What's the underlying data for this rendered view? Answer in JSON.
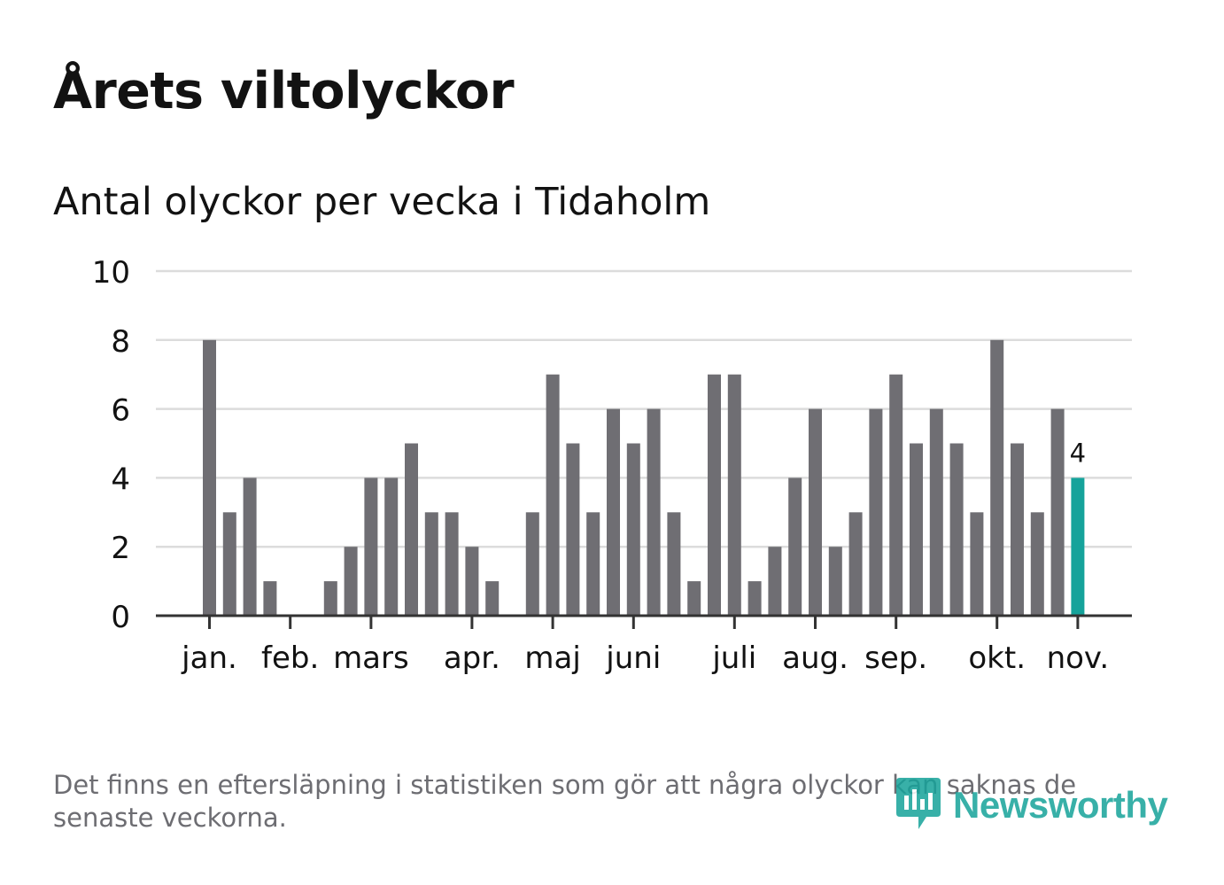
{
  "header": {
    "title": "Årets viltolyckor",
    "subtitle": "Antal olyckor per vecka i Tidaholm"
  },
  "footnote": "Det finns en eftersläpning i statistiken som gör att några olyckor kan saknas de senaste veckorna.",
  "brand": {
    "name": "Newsworthy",
    "icon": "newsworthy-logo-icon"
  },
  "colors": {
    "bar": "#6f6e73",
    "highlight": "#15a39b",
    "grid": "#dcdcdc",
    "axis": "#333333",
    "text": "#121212",
    "muted": "#6d6d72"
  },
  "chart_data": {
    "type": "bar",
    "title": "Antal olyckor per vecka i Tidaholm",
    "xlabel": "",
    "ylabel": "",
    "ylim": [
      0,
      10
    ],
    "yticks": [
      0,
      2,
      4,
      6,
      8,
      10
    ],
    "grid": true,
    "legend": "none",
    "weeks": [
      1,
      2,
      3,
      4,
      5,
      6,
      7,
      8,
      9,
      10,
      11,
      12,
      13,
      14,
      15,
      16,
      17,
      18,
      19,
      20,
      21,
      22,
      23,
      24,
      25,
      26,
      27,
      28,
      29,
      30,
      31,
      32,
      33,
      34,
      35,
      36,
      37,
      38,
      39,
      40,
      41,
      42,
      43,
      44
    ],
    "values": [
      8,
      3,
      4,
      1,
      0,
      0,
      1,
      2,
      4,
      4,
      5,
      3,
      3,
      2,
      1,
      0,
      3,
      7,
      5,
      3,
      6,
      5,
      6,
      3,
      1,
      7,
      7,
      1,
      2,
      4,
      6,
      2,
      3,
      6,
      7,
      5,
      6,
      5,
      3,
      8,
      5,
      3,
      6,
      4
    ],
    "highlight_index": 43,
    "highlight_label": "4",
    "month_ticks": [
      {
        "label": "jan.",
        "week": 1
      },
      {
        "label": "feb.",
        "week": 5
      },
      {
        "label": "mars",
        "week": 9
      },
      {
        "label": "apr.",
        "week": 14
      },
      {
        "label": "maj",
        "week": 18
      },
      {
        "label": "juni",
        "week": 22
      },
      {
        "label": "juli",
        "week": 27
      },
      {
        "label": "aug.",
        "week": 31
      },
      {
        "label": "sep.",
        "week": 35
      },
      {
        "label": "okt.",
        "week": 40
      },
      {
        "label": "nov.",
        "week": 44
      }
    ]
  }
}
